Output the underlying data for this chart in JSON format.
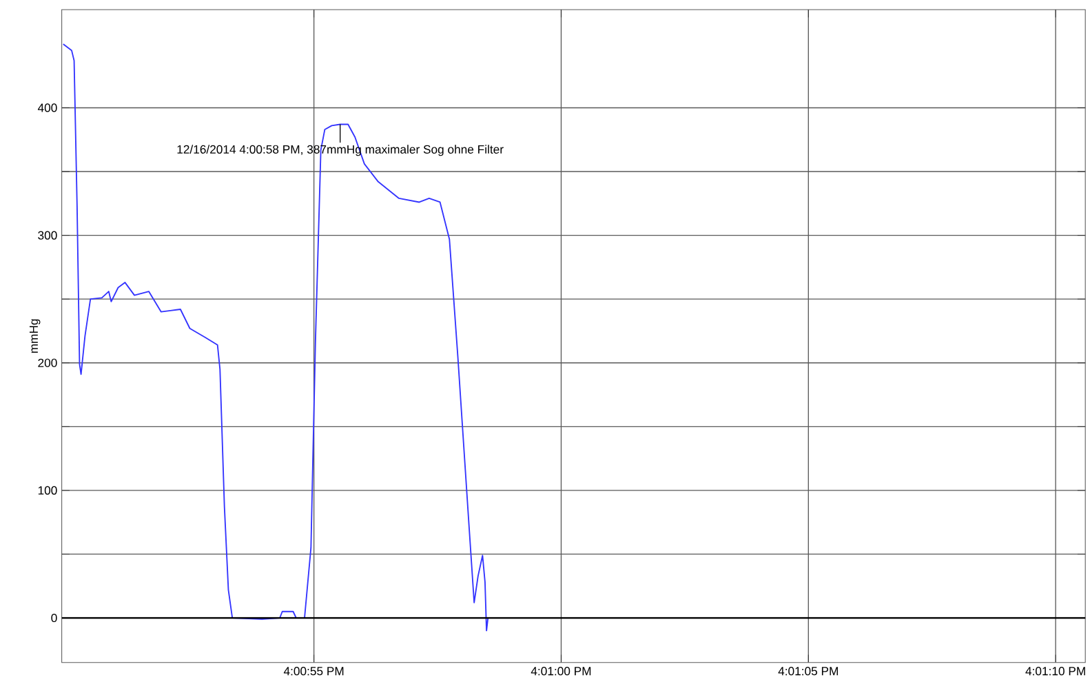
{
  "chart_data": {
    "type": "line",
    "ylabel": "mmHg",
    "x": [
      "2014-12-16T16:00:49.93",
      "2014-12-16T16:00:50.10",
      "2014-12-16T16:00:50.15",
      "2014-12-16T16:00:50.21",
      "2014-12-16T16:00:50.26",
      "2014-12-16T16:00:50.29",
      "2014-12-16T16:00:50.37",
      "2014-12-16T16:00:50.48",
      "2014-12-16T16:00:50.71",
      "2014-12-16T16:00:50.85",
      "2014-12-16T16:00:50.90",
      "2014-12-16T16:00:51.04",
      "2014-12-16T16:00:51.18",
      "2014-12-16T16:00:51.37",
      "2014-12-16T16:00:51.66",
      "2014-12-16T16:00:51.91",
      "2014-12-16T16:00:52.10",
      "2014-12-16T16:00:52.30",
      "2014-12-16T16:00:52.49",
      "2014-12-16T16:00:52.80",
      "2014-12-16T16:00:53.05",
      "2014-12-16T16:00:53.10",
      "2014-12-16T16:00:53.19",
      "2014-12-16T16:00:53.27",
      "2014-12-16T16:00:53.35",
      "2014-12-16T16:00:53.95",
      "2014-12-16T16:00:54.31",
      "2014-12-16T16:00:54.36",
      "2014-12-16T16:00:54.58",
      "2014-12-16T16:00:54.64",
      "2014-12-16T16:00:54.81",
      "2014-12-16T16:00:54.94",
      "2014-12-16T16:00:55.03",
      "2014-12-16T16:00:55.14",
      "2014-12-16T16:00:55.22",
      "2014-12-16T16:00:55.36",
      "2014-12-16T16:00:55.53",
      "2014-12-16T16:00:55.69",
      "2014-12-16T16:00:55.83",
      "2014-12-16T16:00:56.02",
      "2014-12-16T16:00:56.30",
      "2014-12-16T16:00:56.72",
      "2014-12-16T16:00:57.13",
      "2014-12-16T16:00:57.33",
      "2014-12-16T16:00:57.55",
      "2014-12-16T16:00:57.74",
      "2014-12-16T16:00:57.91",
      "2014-12-16T16:00:58.13",
      "2014-12-16T16:00:58.24",
      "2014-12-16T16:00:58.32",
      "2014-12-16T16:00:58.41",
      "2014-12-16T16:00:58.46",
      "2014-12-16T16:00:58.49",
      "2014-12-16T16:00:58.52",
      "2014-12-16T16:01:10.60"
    ],
    "series": [
      {
        "color": "#3333ff",
        "values": [
          450,
          445,
          437,
          323,
          199,
          191,
          221,
          250,
          251,
          256,
          248,
          259,
          263,
          253,
          256,
          240,
          241,
          242,
          227,
          220,
          214,
          195,
          87,
          22,
          0,
          -1,
          0,
          5,
          5,
          0,
          0,
          55,
          216,
          367,
          383,
          386,
          387,
          387,
          377,
          356,
          342,
          329,
          326,
          329,
          326,
          297,
          205,
          76,
          12,
          33,
          49,
          28,
          -10,
          0,
          0
        ]
      }
    ],
    "xlim": [
      "2014-12-16T16:00:49.90",
      "2014-12-16T16:01:10.60"
    ],
    "ylim": [
      -35,
      477
    ],
    "xticks": [
      {
        "value": "2014-12-16T16:00:55",
        "label": "4:00:55 PM"
      },
      {
        "value": "2014-12-16T16:01:00",
        "label": "4:01:00 PM"
      },
      {
        "value": "2014-12-16T16:01:05",
        "label": "4:01:05 PM"
      },
      {
        "value": "2014-12-16T16:01:10",
        "label": "4:01:10 PM"
      }
    ],
    "yticks": [
      0,
      {
        "value": 50,
        "label": null
      },
      100,
      {
        "value": 150,
        "label": null
      },
      200,
      {
        "value": 250,
        "label": null
      },
      300,
      {
        "value": 350,
        "label": null
      },
      400
    ],
    "grid": true,
    "marker": "none",
    "line_style": "solid",
    "ref_lines": [
      {
        "axis": "y",
        "value": 0,
        "color": "#000000"
      }
    ],
    "annotations": [
      {
        "text": "12/16/2014 4:00:58 PM, 387mmHg maximaler Sog ohne Filter",
        "x": "2014-12-16T16:00:55.53",
        "y": 387
      }
    ]
  }
}
